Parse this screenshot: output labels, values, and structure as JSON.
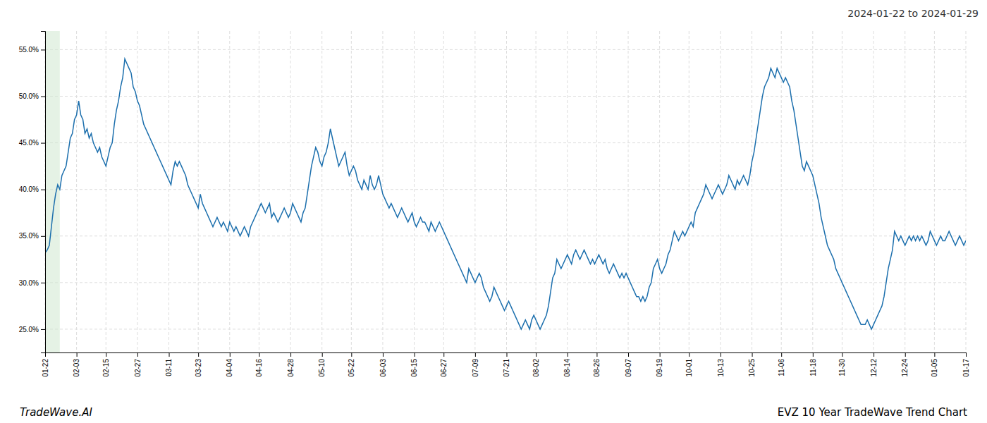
{
  "chart_data": {
    "type": "line",
    "title": "2024-01-22 to 2024-01-29",
    "annotations": [
      "TradeWave.AI",
      "EVZ 10 Year TradeWave Trend Chart"
    ],
    "color": "#1c6fad",
    "grid": true,
    "highlight": {
      "from": 0,
      "to": 7,
      "color": "#d0e8d0"
    },
    "ylim": [
      22.5,
      57.0
    ],
    "yticks": [
      {
        "value": 25.0,
        "label": "25.0%"
      },
      {
        "value": 30.0,
        "label": "30.0%"
      },
      {
        "value": 35.0,
        "label": "35.0%"
      },
      {
        "value": 40.0,
        "label": "40.0%"
      },
      {
        "value": 45.0,
        "label": "45.0%"
      },
      {
        "value": 50.0,
        "label": "50.0%"
      },
      {
        "value": 55.0,
        "label": "55.0%"
      }
    ],
    "categories": [
      "01-22",
      null,
      null,
      null,
      null,
      null,
      null,
      null,
      null,
      null,
      null,
      null,
      null,
      null,
      null,
      "02-03",
      null,
      null,
      null,
      null,
      null,
      null,
      null,
      null,
      null,
      null,
      null,
      null,
      null,
      "02-15",
      null,
      null,
      null,
      null,
      null,
      null,
      null,
      null,
      null,
      null,
      null,
      null,
      null,
      null,
      "02-27",
      null,
      null,
      null,
      null,
      null,
      null,
      null,
      null,
      null,
      null,
      null,
      null,
      null,
      null,
      "03-11",
      null,
      null,
      null,
      null,
      null,
      null,
      null,
      null,
      null,
      null,
      null,
      null,
      null,
      "03-23",
      null,
      null,
      null,
      null,
      null,
      null,
      null,
      null,
      null,
      null,
      null,
      null,
      null,
      null,
      "04-04",
      null,
      null,
      null,
      null,
      null,
      null,
      null,
      null,
      null,
      null,
      null,
      null,
      null,
      "04-16",
      null,
      null,
      null,
      null,
      null,
      null,
      null,
      null,
      null,
      null,
      null,
      null,
      null,
      null,
      "04-28",
      null,
      null,
      null,
      null,
      null,
      null,
      null,
      null,
      null,
      null,
      null,
      null,
      null,
      null,
      "05-10",
      null,
      null,
      null,
      null,
      null,
      null,
      null,
      null,
      null,
      null,
      null,
      null,
      null,
      "05-22",
      null,
      null,
      null,
      null,
      null,
      null,
      null,
      null,
      null,
      null,
      null,
      null,
      null,
      null,
      "06-03",
      null,
      null,
      null,
      null,
      null,
      null,
      null,
      null,
      null,
      null,
      null,
      null,
      null,
      null,
      "06-15",
      null,
      null,
      null,
      null,
      null,
      null,
      null,
      null,
      null,
      null,
      null,
      null,
      null,
      "06-27",
      null,
      null,
      null,
      null,
      null,
      null,
      null,
      null,
      null,
      null,
      null,
      null,
      null,
      null,
      "07-09",
      null,
      null,
      null,
      null,
      null,
      null,
      null,
      null,
      null,
      null,
      null,
      null,
      null,
      null,
      "07-21",
      null,
      null,
      null,
      null,
      null,
      null,
      null,
      null,
      null,
      null,
      null,
      null,
      null,
      "08-02",
      null,
      null,
      null,
      null,
      null,
      null,
      null,
      null,
      null,
      null,
      null,
      null,
      null,
      null,
      "08-14",
      null,
      null,
      null,
      null,
      null,
      null,
      null,
      null,
      null,
      null,
      null,
      null,
      null,
      "08-26",
      null,
      null,
      null,
      null,
      null,
      null,
      null,
      null,
      null,
      null,
      null,
      null,
      null,
      null,
      "09-07",
      null,
      null,
      null,
      null,
      null,
      null,
      null,
      null,
      null,
      null,
      null,
      null,
      null,
      null,
      "09-19",
      null,
      null,
      null,
      null,
      null,
      null,
      null,
      null,
      null,
      null,
      null,
      null,
      null,
      "10-01",
      null,
      null,
      null,
      null,
      null,
      null,
      null,
      null,
      null,
      null,
      null,
      null,
      null,
      null,
      "10-13",
      null,
      null,
      null,
      null,
      null,
      null,
      null,
      null,
      null,
      null,
      null,
      null,
      null,
      null,
      "10-25",
      null,
      null,
      null,
      null,
      null,
      null,
      null,
      null,
      null,
      null,
      null,
      null,
      null,
      "11-06",
      null,
      null,
      null,
      null,
      null,
      null,
      null,
      null,
      null,
      null,
      null,
      null,
      null,
      null,
      "11-18",
      null,
      null,
      null,
      null,
      null,
      null,
      null,
      null,
      null,
      null,
      null,
      null,
      null,
      "11-30",
      null,
      null,
      null,
      null,
      null,
      null,
      null,
      null,
      null,
      null,
      null,
      null,
      null,
      null,
      "12-12",
      null,
      null,
      null,
      null,
      null,
      null,
      null,
      null,
      null,
      null,
      null,
      null,
      null,
      null,
      "12-24",
      null,
      null,
      null,
      null,
      null,
      null,
      null,
      null,
      null,
      null,
      null,
      null,
      null,
      "01-05",
      null,
      null,
      null,
      null,
      null,
      null,
      null,
      null,
      null,
      null,
      null,
      null,
      null,
      null,
      "01-17"
    ],
    "values": [
      33.2,
      33.5,
      34.0,
      36.0,
      38.0,
      39.5,
      40.5,
      40.0,
      41.5,
      42.0,
      42.5,
      44.0,
      45.5,
      46.0,
      47.5,
      48.0,
      49.5,
      48.0,
      47.5,
      46.0,
      46.5,
      45.5,
      46.0,
      45.0,
      44.5,
      44.0,
      44.5,
      43.5,
      43.0,
      42.5,
      43.5,
      44.5,
      45.0,
      47.0,
      48.5,
      49.5,
      51.0,
      52.0,
      54.0,
      53.5,
      53.0,
      52.5,
      51.0,
      50.5,
      49.5,
      49.0,
      48.0,
      47.0,
      46.5,
      46.0,
      45.5,
      45.0,
      44.5,
      44.0,
      43.5,
      43.0,
      42.5,
      42.0,
      41.5,
      41.0,
      40.5,
      42.0,
      43.0,
      42.5,
      43.0,
      42.5,
      42.0,
      41.5,
      40.5,
      40.0,
      39.5,
      39.0,
      38.5,
      38.0,
      39.5,
      38.5,
      38.0,
      37.5,
      37.0,
      36.5,
      36.0,
      36.5,
      37.0,
      36.5,
      36.0,
      36.5,
      36.0,
      35.5,
      36.5,
      36.0,
      35.5,
      36.0,
      35.5,
      35.0,
      35.5,
      36.0,
      35.5,
      35.0,
      36.0,
      36.5,
      37.0,
      37.5,
      38.0,
      38.5,
      38.0,
      37.5,
      38.0,
      38.5,
      37.0,
      37.5,
      37.0,
      36.5,
      37.0,
      37.5,
      38.0,
      37.5,
      37.0,
      37.5,
      38.5,
      38.0,
      37.5,
      37.0,
      36.5,
      37.5,
      38.0,
      39.5,
      41.0,
      42.5,
      43.5,
      44.5,
      44.0,
      43.0,
      42.5,
      43.5,
      44.0,
      45.0,
      46.5,
      45.5,
      44.5,
      43.5,
      42.5,
      43.0,
      43.5,
      44.0,
      42.5,
      41.5,
      42.0,
      42.5,
      42.0,
      41.0,
      40.5,
      40.0,
      41.0,
      40.5,
      40.0,
      41.5,
      40.5,
      40.0,
      40.5,
      41.5,
      40.5,
      39.5,
      39.0,
      38.5,
      38.0,
      38.5,
      38.0,
      37.5,
      37.0,
      37.5,
      38.0,
      37.5,
      37.0,
      36.5,
      37.0,
      37.5,
      36.5,
      36.0,
      36.5,
      37.0,
      36.5,
      36.5,
      36.0,
      35.5,
      36.5,
      36.0,
      35.5,
      36.0,
      36.5,
      36.0,
      35.5,
      35.0,
      34.5,
      34.0,
      33.5,
      33.0,
      32.5,
      32.0,
      31.5,
      31.0,
      30.5,
      30.0,
      31.5,
      31.0,
      30.5,
      30.0,
      30.5,
      31.0,
      30.5,
      29.5,
      29.0,
      28.5,
      28.0,
      28.5,
      29.5,
      29.0,
      28.5,
      28.0,
      27.5,
      27.0,
      27.5,
      28.0,
      27.5,
      27.0,
      26.5,
      26.0,
      25.5,
      25.0,
      25.5,
      26.0,
      25.5,
      25.0,
      26.0,
      26.5,
      26.0,
      25.5,
      25.0,
      25.5,
      26.0,
      26.5,
      27.5,
      29.0,
      30.5,
      31.0,
      32.5,
      32.0,
      31.5,
      32.0,
      32.5,
      33.0,
      32.5,
      32.0,
      33.0,
      33.5,
      33.0,
      32.5,
      33.0,
      33.5,
      33.0,
      32.5,
      32.0,
      32.5,
      32.0,
      32.5,
      33.0,
      32.5,
      32.0,
      32.5,
      31.5,
      31.0,
      31.5,
      32.0,
      31.5,
      31.0,
      30.5,
      31.0,
      30.5,
      31.0,
      30.5,
      30.0,
      29.5,
      29.0,
      28.5,
      28.5,
      28.0,
      28.5,
      28.0,
      28.5,
      29.5,
      30.0,
      31.5,
      32.0,
      32.5,
      31.5,
      31.0,
      31.5,
      32.0,
      33.0,
      33.5,
      34.5,
      35.5,
      35.0,
      34.5,
      35.0,
      35.5,
      35.0,
      35.5,
      36.0,
      36.5,
      36.0,
      37.5,
      38.0,
      38.5,
      39.0,
      39.5,
      40.5,
      40.0,
      39.5,
      39.0,
      39.5,
      40.0,
      40.5,
      40.0,
      39.5,
      40.0,
      40.5,
      41.5,
      41.0,
      40.5,
      40.0,
      41.0,
      40.5,
      41.0,
      41.5,
      41.0,
      40.5,
      41.5,
      43.0,
      44.0,
      45.5,
      47.0,
      48.5,
      50.0,
      51.0,
      51.5,
      52.0,
      53.0,
      52.5,
      52.0,
      53.0,
      52.5,
      52.0,
      51.5,
      52.0,
      51.5,
      51.0,
      49.5,
      48.5,
      47.0,
      45.5,
      44.0,
      42.5,
      42.0,
      43.0,
      42.5,
      42.0,
      41.5,
      40.5,
      39.5,
      38.5,
      37.0,
      36.0,
      35.0,
      34.0,
      33.5,
      33.0,
      32.5,
      31.5,
      31.0,
      30.5,
      30.0,
      29.5,
      29.0,
      28.5,
      28.0,
      27.5,
      27.0,
      26.5,
      26.0,
      25.5,
      25.5,
      25.5,
      26.0,
      25.5,
      25.0,
      25.5,
      26.0,
      26.5,
      27.0,
      27.5,
      28.5,
      30.0,
      31.5,
      32.5,
      33.5,
      35.5,
      35.0,
      34.5,
      35.0,
      34.5,
      34.0,
      34.5,
      35.0,
      34.5,
      35.0,
      34.5,
      35.0,
      34.5,
      35.0,
      34.5,
      34.0,
      34.5,
      35.5,
      35.0,
      34.5,
      34.0,
      34.5,
      35.0,
      34.5,
      34.5,
      35.0,
      35.5,
      35.0,
      34.5,
      34.0,
      34.5,
      35.0,
      34.5,
      34.0,
      34.5
    ]
  }
}
